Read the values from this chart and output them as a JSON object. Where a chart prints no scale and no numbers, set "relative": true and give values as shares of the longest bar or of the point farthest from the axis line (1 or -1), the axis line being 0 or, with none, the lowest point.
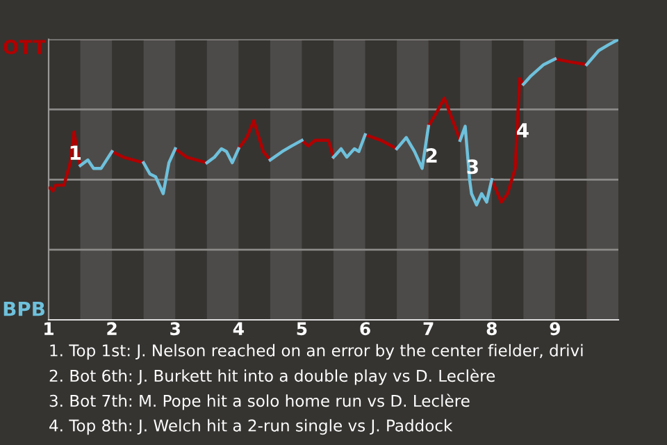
{
  "chart_data": {
    "type": "line",
    "relative": true,
    "legend": false,
    "xlim": [
      1,
      10
    ],
    "xticks": [
      1,
      2,
      3,
      4,
      5,
      6,
      7,
      8,
      9
    ],
    "series": [
      {
        "name": "OTT",
        "color": "#b00000",
        "x": [
          1,
          1.03,
          1.07,
          1.11,
          1.24,
          1.28,
          1.34,
          1.4,
          1.45,
          1.5,
          1.75,
          2,
          2.18,
          2.5,
          2.75,
          3,
          3.18,
          3.5,
          3.75,
          4,
          4.13,
          4.24,
          4.39,
          4.5,
          4.75,
          5,
          5.1,
          5.21,
          5.42,
          5.5,
          5.75,
          6,
          6.25,
          6.5,
          6.75,
          7,
          7.13,
          7.25,
          7.5,
          7.75,
          8,
          8.15,
          8.25,
          8.37,
          8.44,
          8.5,
          8.75,
          9,
          9.23,
          9.5
        ],
        "values": [
          0.47,
          0.47,
          0.46,
          0.48,
          0.48,
          0.51,
          0.56,
          0.67,
          0.6,
          0.55,
          null,
          0.6,
          0.58,
          0.56,
          null,
          0.61,
          0.58,
          0.56,
          null,
          0.61,
          0.65,
          0.71,
          0.6,
          0.57,
          null,
          0.64,
          0.62,
          0.64,
          0.64,
          0.58,
          null,
          0.66,
          0.64,
          0.61,
          null,
          0.69,
          0.74,
          0.79,
          0.64,
          null,
          0.5,
          0.42,
          0.45,
          0.54,
          0.86,
          0.84,
          null,
          0.93,
          0.92,
          0.91
        ]
      },
      {
        "name": "BPB",
        "color": "#6ec1dc",
        "x": [
          1.5,
          1.62,
          1.71,
          1.83,
          2,
          2.25,
          2.5,
          2.6,
          2.69,
          2.81,
          2.9,
          3,
          3.25,
          3.5,
          3.62,
          3.73,
          3.81,
          3.9,
          4,
          4.25,
          4.5,
          4.69,
          4.84,
          5,
          5.25,
          5.5,
          5.62,
          5.71,
          5.83,
          5.9,
          6,
          6.25,
          6.5,
          6.65,
          6.78,
          6.9,
          7,
          7.25,
          7.5,
          7.58,
          7.65,
          7.68,
          7.76,
          7.84,
          7.92,
          8,
          8.25,
          8.5,
          8.62,
          8.82,
          9,
          9.25,
          9.5,
          9.69,
          9.84,
          10
        ],
        "values": [
          0.55,
          0.57,
          0.54,
          0.54,
          0.6,
          null,
          0.56,
          0.52,
          0.51,
          0.45,
          0.56,
          0.61,
          null,
          0.56,
          0.58,
          0.61,
          0.6,
          0.56,
          0.61,
          null,
          0.57,
          0.6,
          0.62,
          0.64,
          null,
          0.58,
          0.61,
          0.58,
          0.61,
          0.6,
          0.66,
          null,
          0.61,
          0.65,
          0.6,
          0.54,
          0.69,
          null,
          0.64,
          0.69,
          0.5,
          0.45,
          0.41,
          0.45,
          0.42,
          0.5,
          null,
          0.84,
          0.87,
          0.91,
          0.93,
          null,
          0.91,
          0.96,
          0.98,
          1
        ]
      }
    ],
    "bands": [
      {
        "axis": "x",
        "from": 1.5,
        "to": 2,
        "color": "#4d4b49"
      },
      {
        "axis": "x",
        "from": 2.5,
        "to": 3,
        "color": "#4d4b49"
      },
      {
        "axis": "x",
        "from": 3.5,
        "to": 4,
        "color": "#4d4b49"
      },
      {
        "axis": "x",
        "from": 4.5,
        "to": 5,
        "color": "#4d4b49"
      },
      {
        "axis": "x",
        "from": 5.5,
        "to": 6,
        "color": "#4d4b49"
      },
      {
        "axis": "x",
        "from": 6.5,
        "to": 7,
        "color": "#4d4b49"
      },
      {
        "axis": "x",
        "from": 7.5,
        "to": 8,
        "color": "#4d4b49"
      },
      {
        "axis": "x",
        "from": 8.5,
        "to": 9,
        "color": "#4d4b49"
      },
      {
        "axis": "x",
        "from": 9.5,
        "to": 10,
        "color": "#4d4b49"
      }
    ],
    "ref_lines": [
      {
        "axis": "y",
        "value": 0.25,
        "color": "#8c8a88"
      },
      {
        "axis": "y",
        "value": 0.5,
        "color": "#8c8a88"
      },
      {
        "axis": "y",
        "value": 0.75,
        "color": "#8c8a88"
      },
      {
        "axis": "y",
        "value": 1,
        "color": "#8c8a88"
      }
    ],
    "annotations": [
      {
        "text": "1",
        "x": 1.42,
        "y": 0.59
      },
      {
        "text": "2",
        "x": 7.05,
        "y": 0.58
      },
      {
        "text": "3",
        "x": 7.7,
        "y": 0.54
      },
      {
        "text": "4",
        "x": 8.49,
        "y": 0.67
      },
      "1. Top 1st: J. Nelson reached on an error by the center fielder, drivi",
      "2. Bot 6th: J. Burkett hit into a double play vs D. Leclère",
      "3. Bot 7th: M. Pope hit a solo home run vs D. Leclère",
      "4. Top 8th: J. Welch hit a 2-run single vs J. Paddock"
    ]
  }
}
